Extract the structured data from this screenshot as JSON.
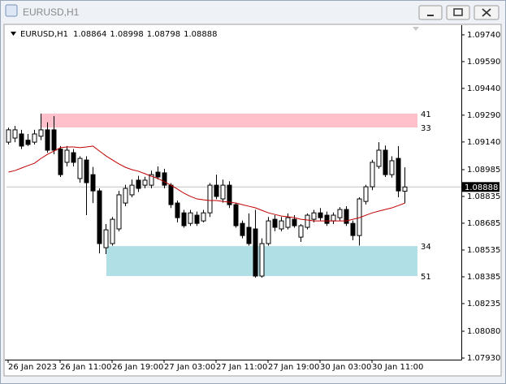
{
  "chart_data": {
    "type": "candlestick",
    "window_title": "EURUSD,H1",
    "symbol": "EURUSD,H1",
    "categories": [
      "26 Jan 2023",
      null,
      null,
      null,
      null,
      null,
      null,
      null,
      "26 Jan 11:00",
      null,
      null,
      null,
      null,
      null,
      null,
      null,
      "26 Jan 19:00",
      null,
      null,
      null,
      null,
      null,
      null,
      null,
      "27 Jan 03:00",
      null,
      null,
      null,
      null,
      null,
      null,
      null,
      "27 Jan 11:00",
      null,
      null,
      null,
      null,
      null,
      null,
      null,
      "27 Jan 19:00",
      null,
      null,
      null,
      null,
      null,
      null,
      null,
      "30 Jan 03:00",
      null,
      null,
      null,
      null,
      null,
      null,
      null,
      "30 Jan 11:00",
      null,
      null,
      null,
      null,
      null
    ],
    "ohlc": [
      [
        1.09139,
        1.0922,
        1.09126,
        1.09208
      ],
      [
        1.09162,
        1.0923,
        1.09139,
        1.09208
      ],
      [
        1.09185,
        1.09208,
        1.091,
        1.09117
      ],
      [
        1.0915,
        1.09185,
        1.09117,
        1.09126
      ],
      [
        1.09139,
        1.09208,
        1.09126,
        1.09185
      ],
      [
        1.09172,
        1.09299,
        1.0915,
        1.09208
      ],
      [
        1.09208,
        1.0925,
        1.0908,
        1.09094
      ],
      [
        1.09208,
        1.09285,
        1.09071,
        1.09094
      ],
      [
        1.091,
        1.09117,
        1.08944,
        1.08957
      ],
      [
        1.09026,
        1.09117,
        1.09003,
        1.09094
      ],
      [
        1.0908,
        1.091,
        1.09003,
        1.09026
      ],
      [
        1.08935,
        1.0906,
        1.08912,
        1.09048
      ],
      [
        1.09039,
        1.0906,
        1.0873,
        1.08912
      ],
      [
        1.08957,
        1.09,
        1.08798,
        1.08866
      ],
      [
        1.08866,
        1.0888,
        1.08516,
        1.08571
      ],
      [
        1.08548,
        1.0868,
        1.08512,
        1.08648
      ],
      [
        1.08571,
        1.0872,
        1.0856,
        1.08707
      ],
      [
        1.08653,
        1.08866,
        1.0864,
        1.08844
      ],
      [
        1.08798,
        1.089,
        1.0878,
        1.0888
      ],
      [
        1.08844,
        1.0893,
        1.0883,
        1.08898
      ],
      [
        1.08926,
        1.0895,
        1.0886,
        1.0888
      ],
      [
        1.08898,
        1.08945,
        1.0888,
        1.08926
      ],
      [
        1.08898,
        1.0898,
        1.0888,
        1.08957
      ],
      [
        1.08971,
        1.09003,
        1.0893,
        1.08944
      ],
      [
        1.08967,
        1.0899,
        1.0888,
        1.08898
      ],
      [
        1.08898,
        1.0891,
        1.0877,
        1.08789
      ],
      [
        1.08798,
        1.08812,
        1.0869,
        1.08716
      ],
      [
        1.08743,
        1.0876,
        1.0866,
        1.08671
      ],
      [
        1.08684,
        1.0876,
        1.0867,
        1.08743
      ],
      [
        1.0873,
        1.0875,
        1.0867,
        1.08684
      ],
      [
        1.08698,
        1.0876,
        1.0869,
        1.08743
      ],
      [
        1.08743,
        1.0891,
        1.0872,
        1.08898
      ],
      [
        1.08898,
        1.08957,
        1.0882,
        1.08835
      ],
      [
        1.08821,
        1.0893,
        1.088,
        1.08898
      ],
      [
        1.08898,
        1.0892,
        1.0877,
        1.08789
      ],
      [
        1.08789,
        1.088,
        1.0866,
        1.08671
      ],
      [
        1.08684,
        1.087,
        1.086,
        1.08616
      ],
      [
        1.08662,
        1.0874,
        1.0856,
        1.08571
      ],
      [
        1.08653,
        1.0876,
        1.0838,
        1.08389
      ],
      [
        1.08389,
        1.086,
        1.0838,
        1.08571
      ],
      [
        1.08571,
        1.0872,
        1.0856,
        1.08698
      ],
      [
        1.08707,
        1.0873,
        1.0864,
        1.08662
      ],
      [
        1.08653,
        1.0872,
        1.0864,
        1.08698
      ],
      [
        1.08662,
        1.0874,
        1.0865,
        1.08716
      ],
      [
        1.08707,
        1.0873,
        1.0866,
        1.08671
      ],
      [
        1.08607,
        1.0868,
        1.0858,
        1.08671
      ],
      [
        1.08662,
        1.0874,
        1.0865,
        1.0873
      ],
      [
        1.08707,
        1.0876,
        1.0869,
        1.08743
      ],
      [
        1.08743,
        1.0877,
        1.087,
        1.08716
      ],
      [
        1.0873,
        1.0875,
        1.0867,
        1.08684
      ],
      [
        1.08698,
        1.08745,
        1.0868,
        1.0873
      ],
      [
        1.08716,
        1.08775,
        1.087,
        1.08762
      ],
      [
        1.08762,
        1.0878,
        1.0867,
        1.08684
      ],
      [
        1.08684,
        1.087,
        1.0859,
        1.08616
      ],
      [
        1.08616,
        1.0883,
        1.0856,
        1.08821
      ],
      [
        1.08807,
        1.089,
        1.0879,
        1.08889
      ],
      [
        1.08889,
        1.0904,
        1.0887,
        1.09026
      ],
      [
        1.09003,
        1.09139,
        1.0899,
        1.09094
      ],
      [
        1.09094,
        1.0912,
        1.08944,
        1.08957
      ],
      [
        1.08957,
        1.0906,
        1.0894,
        1.09035
      ],
      [
        1.09048,
        1.09117,
        1.0883,
        1.08866
      ],
      [
        1.08864,
        1.08998,
        1.08798,
        1.08888
      ]
    ],
    "moving_average": {
      "color": "#c00000",
      "values": [
        1.08971,
        1.0898,
        1.08994,
        1.09008,
        1.09021,
        1.09048,
        1.09071,
        1.09089,
        1.09108,
        1.09112,
        1.09112,
        1.09108,
        1.09112,
        1.09117,
        1.09089,
        1.09062,
        1.09039,
        1.09017,
        1.08998,
        1.08985,
        1.08976,
        1.08962,
        1.08948,
        1.08935,
        1.08917,
        1.08898,
        1.08876,
        1.08853,
        1.08835,
        1.08821,
        1.08816,
        1.08812,
        1.08812,
        1.08807,
        1.08803,
        1.08798,
        1.08789,
        1.0878,
        1.08771,
        1.08757,
        1.08743,
        1.08734,
        1.08725,
        1.08721,
        1.08716,
        1.08707,
        1.08703,
        1.08698,
        1.08698,
        1.08698,
        1.08698,
        1.08698,
        1.08698,
        1.08707,
        1.08716,
        1.0873,
        1.08743,
        1.08753,
        1.08762,
        1.08771,
        1.08784,
        1.08798
      ]
    },
    "zones": [
      {
        "top": 1.09299,
        "bottom": 1.09221,
        "color": "#ffc0cb",
        "labels": [
          "41",
          "33"
        ]
      },
      {
        "top": 1.08557,
        "bottom": 1.08389,
        "color": "#b0e0e6",
        "labels": [
          "34",
          "51"
        ]
      }
    ],
    "ylim": [
      1.07921,
      1.09785
    ],
    "yticks": [
      {
        "value": 1.0974,
        "label": "1.09740"
      },
      {
        "value": 1.0959,
        "label": "1.09590"
      },
      {
        "value": 1.0944,
        "label": "1.09440"
      },
      {
        "value": 1.0929,
        "label": "1.09290"
      },
      {
        "value": 1.0914,
        "label": "1.09140"
      },
      {
        "value": 1.08985,
        "label": "1.08985"
      },
      {
        "value": 1.08835,
        "label": "1.08835"
      },
      {
        "value": 1.08685,
        "label": "1.08685"
      },
      {
        "value": 1.08535,
        "label": "1.08535"
      },
      {
        "value": 1.08385,
        "label": "1.08385"
      },
      {
        "value": 1.08235,
        "label": "1.08235"
      },
      {
        "value": 1.0808,
        "label": "1.08080"
      },
      {
        "value": 1.0793,
        "label": "1.07930"
      }
    ],
    "grid": false
  }
}
